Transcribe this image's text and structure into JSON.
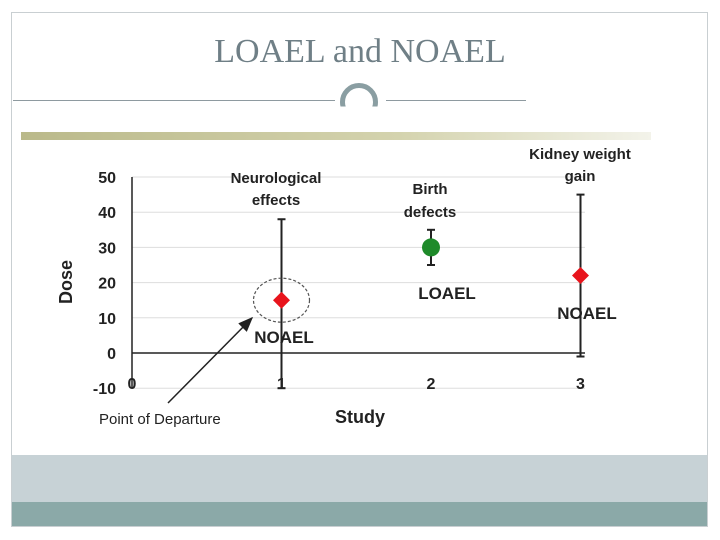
{
  "title": "LOAEL and NOAEL",
  "chart_data": {
    "type": "scatter",
    "ylabel": "Dose",
    "xlabel": "Study",
    "ylim": [
      -10,
      50
    ],
    "xlim": [
      0,
      3
    ],
    "yticks": [
      50,
      40,
      30,
      20,
      10,
      0,
      -10
    ],
    "xticks": [
      0,
      1,
      2,
      3
    ],
    "series": [
      {
        "name": "Neurological effects",
        "x": 1,
        "value": 15,
        "range": [
          -10,
          38
        ],
        "marker": "diamond",
        "color": "#e8141c",
        "point_label": "NOAEL"
      },
      {
        "name": "Birth defects",
        "x": 2,
        "value": 30,
        "range": [
          25,
          35
        ],
        "marker": "circle",
        "color": "#1e8a2a",
        "point_label": "LOAEL"
      },
      {
        "name": "Kidney weight gain",
        "x": 3,
        "value": 22,
        "range": [
          -1,
          45
        ],
        "marker": "diamond",
        "color": "#e8141c",
        "point_label": "NOAEL"
      }
    ],
    "category_labels": [
      {
        "lines": [
          "Neurological",
          "effects"
        ]
      },
      {
        "lines": [
          "Birth",
          "defects"
        ]
      },
      {
        "lines": [
          "Kidney weight",
          "gain"
        ]
      }
    ],
    "annotation": {
      "text": "Point of Departure",
      "target_series": 0
    }
  }
}
